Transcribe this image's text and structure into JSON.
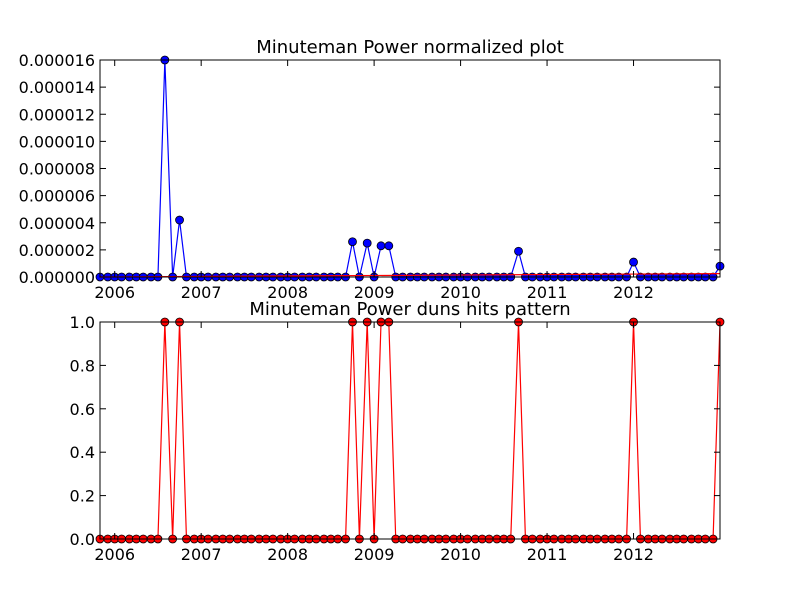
{
  "colors": {
    "top_line": "#0000ff",
    "top_marker": "#0000ff",
    "baseline": "#ff0000",
    "bottom_line": "#ff0000",
    "bottom_marker": "#ff0000"
  },
  "chart_data": [
    {
      "type": "line",
      "title": "Minuteman Power normalized plot",
      "xlabel": "",
      "ylabel": "",
      "x_ticks": [
        "2006",
        "2007",
        "2008",
        "2009",
        "2010",
        "2011",
        "2012"
      ],
      "y_ticks": [
        "0.000000",
        "0.000002",
        "0.000004",
        "0.000006",
        "0.000008",
        "0.000010",
        "0.000012",
        "0.000014",
        "0.000016"
      ],
      "xlim": [
        2005.83,
        2013.0
      ],
      "ylim": [
        0,
        1.6e-05
      ],
      "grid": false,
      "legend": "none",
      "series": [
        {
          "x": [
            2005.83,
            2005.92,
            2006.0,
            2006.08,
            2006.17,
            2006.25,
            2006.33,
            2006.42,
            2006.5,
            2006.58,
            2006.67,
            2006.75,
            2006.83,
            2006.92,
            2007.0,
            2007.08,
            2007.17,
            2007.25,
            2007.33,
            2007.42,
            2007.5,
            2007.58,
            2007.67,
            2007.75,
            2007.83,
            2007.92,
            2008.0,
            2008.08,
            2008.17,
            2008.25,
            2008.33,
            2008.42,
            2008.5,
            2008.58,
            2008.67,
            2008.75,
            2008.83,
            2008.92,
            2009.0,
            2009.08,
            2009.17,
            2009.25,
            2009.33,
            2009.42,
            2009.5,
            2009.58,
            2009.67,
            2009.75,
            2009.83,
            2009.92,
            2010.0,
            2010.08,
            2010.17,
            2010.25,
            2010.33,
            2010.42,
            2010.5,
            2010.58,
            2010.67,
            2010.75,
            2010.83,
            2010.92,
            2011.0,
            2011.08,
            2011.17,
            2011.25,
            2011.33,
            2011.42,
            2011.5,
            2011.58,
            2011.67,
            2011.75,
            2011.83,
            2011.92,
            2012.0,
            2012.08,
            2012.17,
            2012.25,
            2012.33,
            2012.42,
            2012.5,
            2012.58,
            2012.67,
            2012.75,
            2012.83,
            2012.92,
            2013.0
          ],
          "y": [
            0,
            0,
            0,
            0,
            0,
            0,
            0,
            0,
            0,
            1.6e-05,
            0,
            4.2e-06,
            0,
            0,
            0,
            0,
            0,
            0,
            0,
            0,
            0,
            0,
            0,
            0,
            0,
            0,
            0,
            0,
            0,
            0,
            0,
            0,
            0,
            0,
            0,
            2.6e-06,
            0,
            2.5e-06,
            0,
            2.3e-06,
            2.3e-06,
            0,
            0,
            0,
            0,
            0,
            0,
            0,
            0,
            0,
            0,
            0,
            0,
            0,
            0,
            0,
            0,
            0,
            1.9e-06,
            0,
            0,
            0,
            0,
            0,
            0,
            0,
            0,
            0,
            0,
            0,
            0,
            0,
            0,
            0,
            1.1e-06,
            0,
            0,
            0,
            0,
            0,
            0,
            0,
            0,
            0,
            0,
            0,
            8e-07
          ]
        },
        {
          "x": [
            2005.83,
            2013.0
          ],
          "y": [
            0,
            2.5e-07
          ]
        }
      ]
    },
    {
      "type": "line",
      "title": "Minuteman Power duns hits pattern",
      "xlabel": "",
      "ylabel": "",
      "x_ticks": [
        "2006",
        "2007",
        "2008",
        "2009",
        "2010",
        "2011",
        "2012"
      ],
      "y_ticks": [
        "0.0",
        "0.2",
        "0.4",
        "0.6",
        "0.8",
        "1.0"
      ],
      "xlim": [
        2005.83,
        2013.0
      ],
      "ylim": [
        0,
        1.0
      ],
      "grid": false,
      "legend": "none",
      "series": [
        {
          "x": [
            2005.83,
            2005.92,
            2006.0,
            2006.08,
            2006.17,
            2006.25,
            2006.33,
            2006.42,
            2006.5,
            2006.58,
            2006.67,
            2006.75,
            2006.83,
            2006.92,
            2007.0,
            2007.08,
            2007.17,
            2007.25,
            2007.33,
            2007.42,
            2007.5,
            2007.58,
            2007.67,
            2007.75,
            2007.83,
            2007.92,
            2008.0,
            2008.08,
            2008.17,
            2008.25,
            2008.33,
            2008.42,
            2008.5,
            2008.58,
            2008.67,
            2008.75,
            2008.83,
            2008.92,
            2009.0,
            2009.08,
            2009.17,
            2009.25,
            2009.33,
            2009.42,
            2009.5,
            2009.58,
            2009.67,
            2009.75,
            2009.83,
            2009.92,
            2010.0,
            2010.08,
            2010.17,
            2010.25,
            2010.33,
            2010.42,
            2010.5,
            2010.58,
            2010.67,
            2010.75,
            2010.83,
            2010.92,
            2011.0,
            2011.08,
            2011.17,
            2011.25,
            2011.33,
            2011.42,
            2011.5,
            2011.58,
            2011.67,
            2011.75,
            2011.83,
            2011.92,
            2012.0,
            2012.08,
            2012.17,
            2012.25,
            2012.33,
            2012.42,
            2012.5,
            2012.58,
            2012.67,
            2012.75,
            2012.83,
            2012.92,
            2013.0
          ],
          "y": [
            0,
            0,
            0,
            0,
            0,
            0,
            0,
            0,
            0,
            1,
            0,
            1,
            0,
            0,
            0,
            0,
            0,
            0,
            0,
            0,
            0,
            0,
            0,
            0,
            0,
            0,
            0,
            0,
            0,
            0,
            0,
            0,
            0,
            0,
            0,
            1,
            0,
            1,
            0,
            1,
            1,
            0,
            0,
            0,
            0,
            0,
            0,
            0,
            0,
            0,
            0,
            0,
            0,
            0,
            0,
            0,
            0,
            0,
            1,
            0,
            0,
            0,
            0,
            0,
            0,
            0,
            0,
            0,
            0,
            0,
            0,
            0,
            0,
            0,
            1,
            0,
            0,
            0,
            0,
            0,
            0,
            0,
            0,
            0,
            0,
            0,
            1
          ]
        }
      ]
    }
  ]
}
